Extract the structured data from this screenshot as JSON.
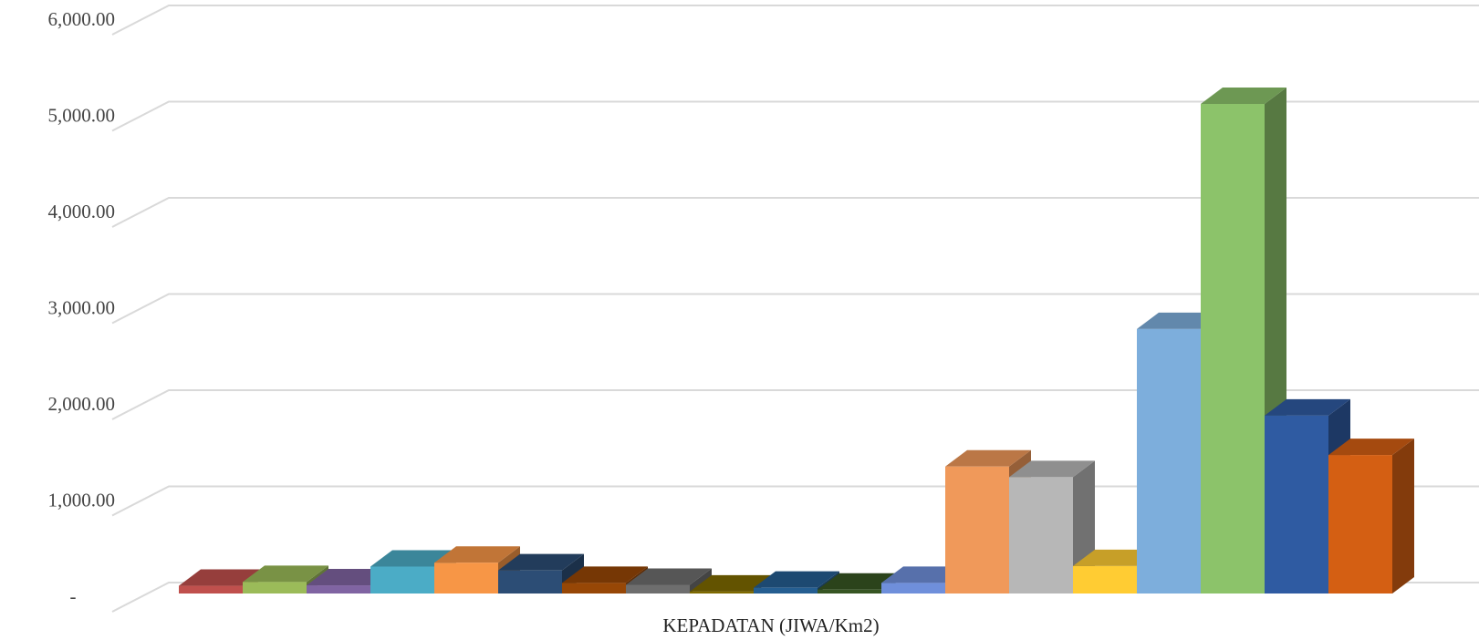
{
  "chart_data": {
    "type": "bar",
    "categories": [
      "KEPADATAN (JIWA/Km2)"
    ],
    "xlabel": "KEPADATAN (JIWA/Km2)",
    "ylabel": "",
    "ylim": [
      0,
      6000
    ],
    "yticks": [
      {
        "value": 0,
        "label": "-"
      },
      {
        "value": 1000,
        "label": "1,000.00"
      },
      {
        "value": 2000,
        "label": "2,000.00"
      },
      {
        "value": 3000,
        "label": "3,000.00"
      },
      {
        "value": 4000,
        "label": "4,000.00"
      },
      {
        "value": 5000,
        "label": "5,000.00"
      },
      {
        "value": 6000,
        "label": "6,000.00"
      }
    ],
    "grid": true,
    "legend": "none",
    "style": "3d-clustered-column",
    "series": [
      {
        "values": [
          80
        ],
        "color": "#C0504D"
      },
      {
        "values": [
          120
        ],
        "color": "#9BBB59"
      },
      {
        "values": [
          85
        ],
        "color": "#8064A2"
      },
      {
        "values": [
          280
        ],
        "color": "#4BACC6"
      },
      {
        "values": [
          320
        ],
        "color": "#F79646"
      },
      {
        "values": [
          240
        ],
        "color": "#2C4D75"
      },
      {
        "values": [
          110
        ],
        "color": "#974706"
      },
      {
        "values": [
          90
        ],
        "color": "#6E6E6E"
      },
      {
        "values": [
          20
        ],
        "color": "#7F6A00"
      },
      {
        "values": [
          60
        ],
        "color": "#255E91"
      },
      {
        "values": [
          40
        ],
        "color": "#375623"
      },
      {
        "values": [
          110
        ],
        "color": "#6F8FDB"
      },
      {
        "values": [
          1320
        ],
        "color": "#F0995A"
      },
      {
        "values": [
          1210
        ],
        "color": "#B7B7B7"
      },
      {
        "values": [
          285
        ],
        "color": "#FFCC33"
      },
      {
        "values": [
          2750
        ],
        "color": "#7DAEDC"
      },
      {
        "values": [
          5090
        ],
        "color": "#8CC36A"
      },
      {
        "values": [
          1850
        ],
        "color": "#2F5BA2"
      },
      {
        "values": [
          1440
        ],
        "color": "#D45F13"
      }
    ]
  }
}
